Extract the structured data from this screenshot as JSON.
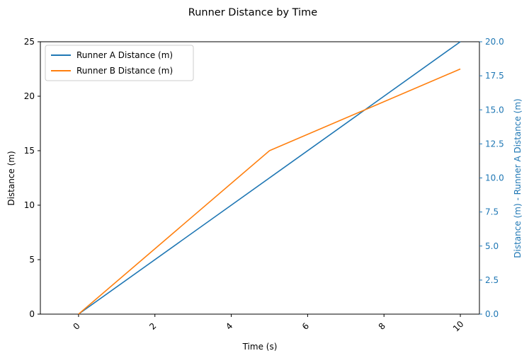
{
  "chart_data": {
    "type": "line",
    "title": "Runner Distance by Time",
    "xlabel": "Time (s)",
    "ylabel": "Distance (m)",
    "y2label": "Distance (m) - Runner A Distance (m)",
    "xlim": [
      -1,
      10.5
    ],
    "ylim": [
      0,
      25
    ],
    "y2lim": [
      0,
      20
    ],
    "xticks": [
      "0",
      "2",
      "4",
      "6",
      "8",
      "10"
    ],
    "yticks": [
      "0",
      "5",
      "10",
      "15",
      "20",
      "25"
    ],
    "y2ticks": [
      "0.0",
      "2.5",
      "5.0",
      "7.5",
      "10.0",
      "12.5",
      "15.0",
      "17.5",
      "20.0"
    ],
    "grid": false,
    "legend_position": "top-left",
    "series": [
      {
        "name": "Runner A Distance (m)",
        "color": "#1f77b4",
        "x": [
          0,
          5,
          10
        ],
        "y": [
          0,
          12.5,
          25
        ]
      },
      {
        "name": "Runner B Distance (m)",
        "color": "#ff7f0e",
        "x": [
          0,
          5,
          10
        ],
        "y": [
          0,
          15,
          22.5
        ]
      }
    ],
    "secondary_axis_color": "#1f77b4"
  }
}
